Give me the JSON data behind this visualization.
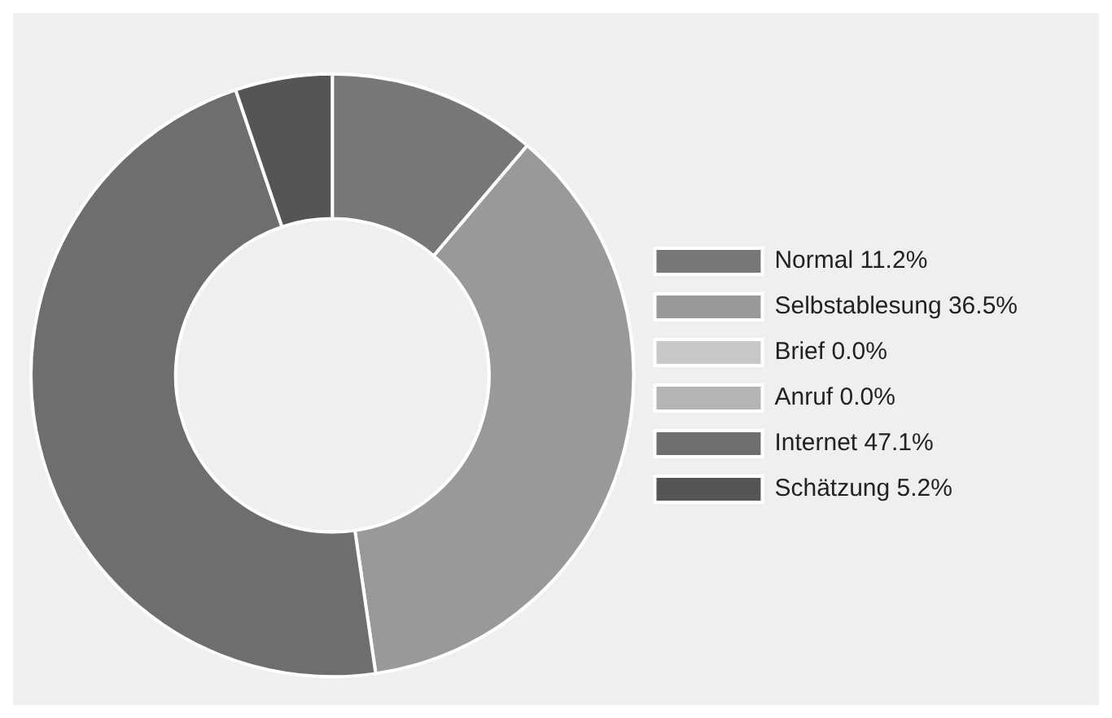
{
  "chart_data": {
    "type": "donut",
    "categories": [
      "Normal",
      "Selbstablesung",
      "Brief",
      "Anruf",
      "Internet",
      "Schätzung"
    ],
    "values": [
      11.2,
      36.5,
      0.0,
      0.0,
      47.1,
      5.2
    ],
    "value_labels": [
      "11.2%",
      "36.5%",
      "0.0%",
      "0.0%",
      "47.1%",
      "5.2%"
    ],
    "colors": [
      "#777777",
      "#999999",
      "#c8c8c8",
      "#b4b4b4",
      "#6e6e6e",
      "#555555"
    ],
    "legend": "right"
  }
}
